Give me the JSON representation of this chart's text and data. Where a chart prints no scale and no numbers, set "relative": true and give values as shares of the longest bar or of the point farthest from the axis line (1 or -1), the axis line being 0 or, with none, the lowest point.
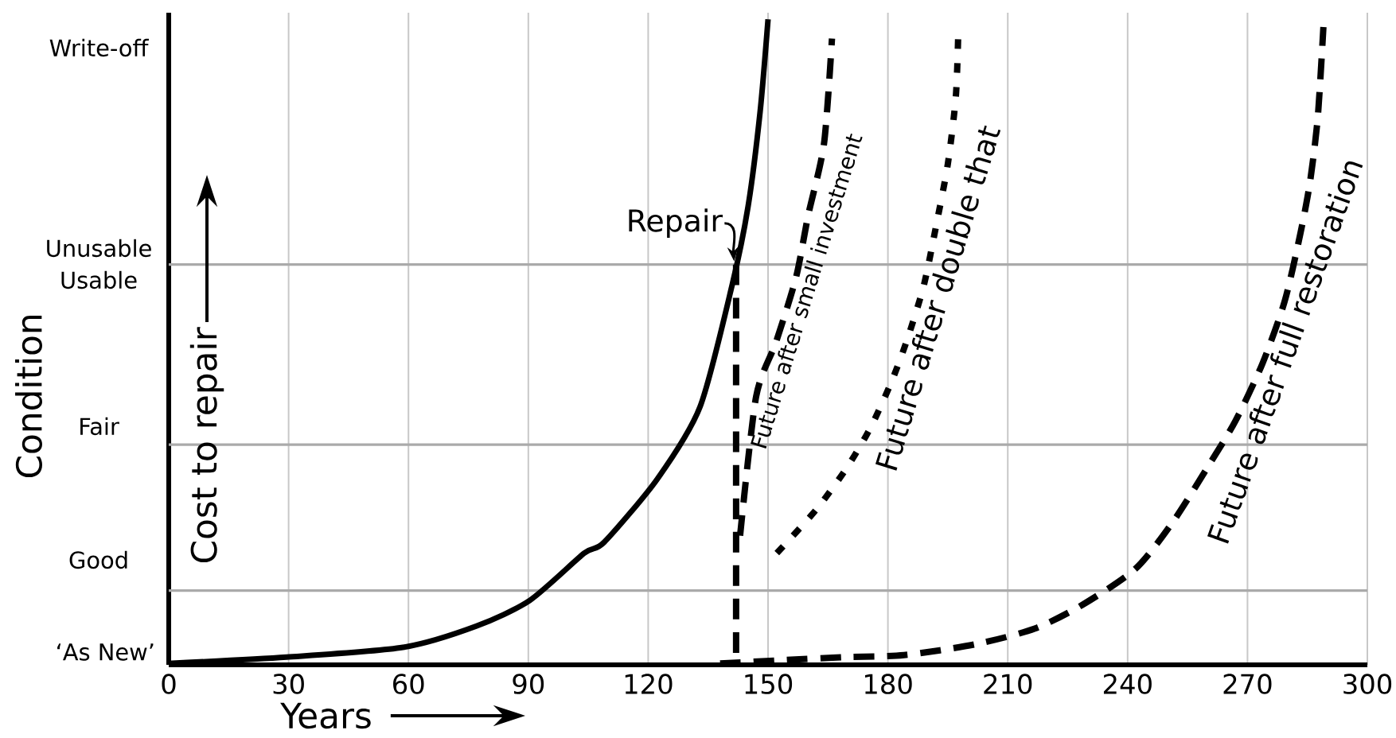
{
  "chart_data": {
    "type": "line",
    "relative": true,
    "xlabel": "Years",
    "ylabel": "Condition",
    "xlim": [
      0,
      300
    ],
    "xticks": [
      0,
      30,
      60,
      90,
      120,
      150,
      180,
      210,
      240,
      270,
      300
    ],
    "grid": "x",
    "marker": "none",
    "ref_lines": [
      {
        "axis": "y",
        "value": 0.115,
        "color": "#aaaaaa"
      },
      {
        "axis": "y",
        "value": 0.341,
        "color": "#aaaaaa"
      },
      {
        "axis": "y",
        "value": 0.62,
        "color": "#aaaaaa"
      }
    ],
    "series": [
      {
        "color": "#000000",
        "line_style": "solid",
        "x": [
          0,
          29.5,
          58.6,
          77,
          90.4,
          104,
          109,
          122.3,
          133,
          141,
          145,
          148,
          150
        ],
        "values": [
          0.002,
          0.012,
          0.027,
          0.06,
          0.1,
          0.173,
          0.19,
          0.288,
          0.4,
          0.588,
          0.71,
          0.856,
          1
        ]
      },
      {
        "color": "#000000",
        "line_style": "dashed",
        "x": [
          142,
          142
        ],
        "values": [
          0.62,
          0
        ]
      },
      {
        "name": "Future after small investment",
        "color": "#000000",
        "line_style": "dashed",
        "x": [
          143,
          147,
          152,
          157,
          160,
          164,
          166
        ],
        "values": [
          0.2,
          0.415,
          0.5,
          0.6,
          0.695,
          0.807,
          0.97
        ]
      },
      {
        "name": "Future after double that",
        "color": "#000000",
        "line_style": "dotted",
        "x": [
          152.2,
          162,
          169.7,
          175.7,
          181,
          185,
          189,
          192,
          195,
          197,
          197.6
        ],
        "values": [
          0.173,
          0.24,
          0.305,
          0.368,
          0.44,
          0.507,
          0.588,
          0.678,
          0.776,
          0.88,
          0.978
        ]
      },
      {
        "name": "Future after full restoration",
        "color": "#000000",
        "line_style": "dashed",
        "x": [
          138,
          153,
          169,
          184,
          202,
          216.7,
          228.7,
          242,
          251.4,
          260.6,
          267,
          273.7,
          279.3,
          283.3,
          285.7,
          287.6,
          289
        ],
        "values": [
          0.002,
          0.007,
          0.012,
          0.015,
          0.032,
          0.056,
          0.093,
          0.149,
          0.222,
          0.312,
          0.378,
          0.466,
          0.563,
          0.67,
          0.75,
          0.849,
          0.988
        ]
      }
    ],
    "annotations": [
      "‘As New’",
      "Good",
      "Fair",
      "Usable",
      "Unusable",
      "Write-off",
      {
        "text": "Repair",
        "x": 141.5,
        "y": 0.62
      },
      "Cost to repair"
    ]
  }
}
